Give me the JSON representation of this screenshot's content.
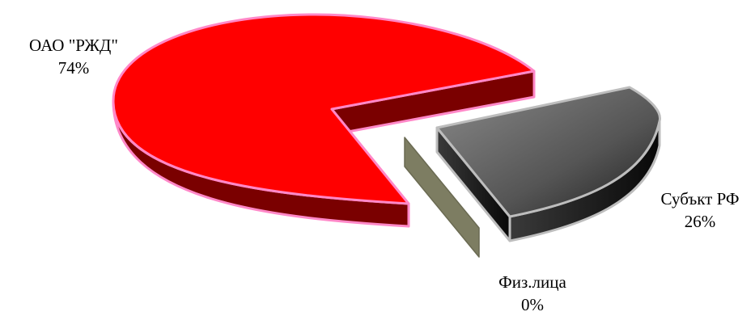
{
  "chart_data": {
    "type": "pie",
    "style": "3d-exploded",
    "slices": [
      {
        "name": "ОАО \"РЖД\"",
        "label": "74%",
        "value": 74,
        "color": "#ff0000",
        "side_color": "#7a0000",
        "edge_color": "#ff88c8"
      },
      {
        "name": "Субъкт РФ",
        "label": "26%",
        "value": 26,
        "color": "#555555",
        "side_color": "#111111",
        "edge_color": "#bdbdbd"
      },
      {
        "name": "Физ.лица",
        "label": "0%",
        "value": 0,
        "color": "#7d7d62",
        "side_color": "#7d7d62",
        "edge_color": "#7d7d62"
      }
    ]
  }
}
